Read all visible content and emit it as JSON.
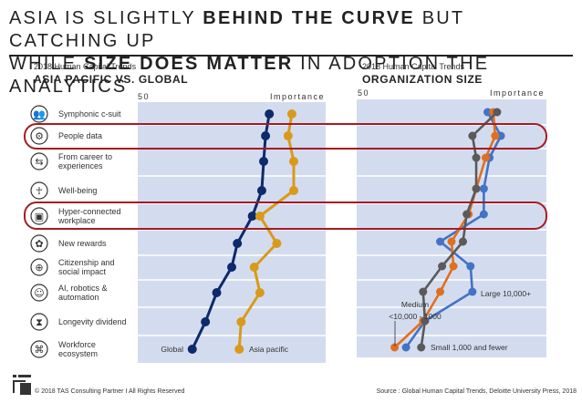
{
  "headline": {
    "line1": [
      {
        "t": "ASIA IS SLIGHTLY ",
        "b": false
      },
      {
        "t": "BEHIND THE CURVE",
        "b": true
      },
      {
        "t": " BUT CATCHING UP",
        "b": false
      }
    ],
    "line2": [
      {
        "t": "WHILE ",
        "b": false
      },
      {
        "t": "SIZE DOES MATTER",
        "b": true
      },
      {
        "t": " IN ADOPTION THE ANALYTICS",
        "b": false
      }
    ]
  },
  "left_panel": {
    "subtitle": "2018 Human Capital Trends",
    "title": "ASIA PACIFIC VS. GLOBAL",
    "axis_left": "50",
    "axis_right": "Importance"
  },
  "right_panel": {
    "subtitle": "2018 Human Capital Trends",
    "title": "ORGANIZATION SIZE",
    "axis_left": "50",
    "axis_right": "Importance"
  },
  "trends": [
    {
      "label": "Symphonic c-suit",
      "icon": "people-group-icon"
    },
    {
      "label": "People data",
      "icon": "network-person-icon",
      "highlight": true
    },
    {
      "label": "From career to experiences",
      "icon": "career-path-icon"
    },
    {
      "label": "Well-being",
      "icon": "meditation-icon"
    },
    {
      "label": "Hyper-connected workplace",
      "icon": "connected-devices-icon",
      "highlight": true
    },
    {
      "label": "New rewards",
      "icon": "reward-tree-icon"
    },
    {
      "label": "Citizenship and social impact",
      "icon": "globe-icon"
    },
    {
      "label": "AI, robotics & automation",
      "icon": "robot-icon"
    },
    {
      "label": "Longevity dividend",
      "icon": "hourglass-icon"
    },
    {
      "label": "Workforce ecosystem",
      "icon": "ecosystem-icon"
    }
  ],
  "chart_data": [
    {
      "type": "line",
      "title": "ASIA PACIFIC VS. GLOBAL",
      "subtitle": "2018 Human Capital Trends",
      "xlabel": "Importance",
      "xmin_label": "50",
      "xlim": [
        50,
        100
      ],
      "categories": [
        "Symphonic c-suit",
        "People data",
        "From career to experiences",
        "Well-being",
        "Hyper-connected workplace",
        "New rewards",
        "Citizenship and social impact",
        "AI, robotics & automation",
        "Longevity dividend",
        "Workforce ecosystem"
      ],
      "series": [
        {
          "name": "Global",
          "color": "#0d2a6b",
          "values": [
            85,
            84,
            83.5,
            83,
            80.5,
            76.5,
            75,
            71,
            68,
            64.5
          ]
        },
        {
          "name": "Asia pacific",
          "color": "#d99a1a",
          "values": [
            91,
            90,
            91.5,
            91.5,
            82.5,
            87,
            81,
            82.5,
            77.5,
            77
          ]
        }
      ]
    },
    {
      "type": "line",
      "title": "ORGANIZATION SIZE",
      "subtitle": "2018 Human Capital Trends",
      "xlabel": "Importance",
      "xmin_label": "50",
      "xlim": [
        50,
        100
      ],
      "categories": [
        "Symphonic c-suit",
        "People data",
        "From career to experiences",
        "Well-being",
        "Hyper-connected workplace",
        "New rewards",
        "Citizenship and social impact",
        "AI, robotics & automation",
        "Longevity dividend",
        "Workforce ecosystem"
      ],
      "series": [
        {
          "name": "Large 10,000+",
          "color": "#4472c4",
          "values": [
            84.5,
            88,
            85,
            83.5,
            83.5,
            72,
            80,
            80.5,
            68,
            63
          ]
        },
        {
          "name": "Medium <10,000 - 1000",
          "color": "#e07020",
          "values": [
            86,
            86.5,
            84,
            81.5,
            79.5,
            75,
            75.5,
            72,
            67.5,
            60
          ]
        },
        {
          "name": "Small 1,000 and fewer",
          "color": "#5a5a5a",
          "values": [
            87,
            80.5,
            81.5,
            81.5,
            79,
            78,
            72.5,
            67.5,
            68,
            67
          ]
        }
      ]
    }
  ],
  "annotations": {
    "global": "Global",
    "asia": "Asia pacific",
    "large": "Large 10,000+",
    "medium_1": "Medium",
    "medium_2": "<10,000 - 1000",
    "small": "Small 1,000 and fewer"
  },
  "footer": {
    "copyright": "© 2018 TAS Consulting Partner  I  All Rights Reserved",
    "source": "Source : Global Human Capital Trends, Deloitte University Press, 2018"
  },
  "colors": {
    "plot_bg": "#d3dcef",
    "highlight": "#a51c24"
  }
}
